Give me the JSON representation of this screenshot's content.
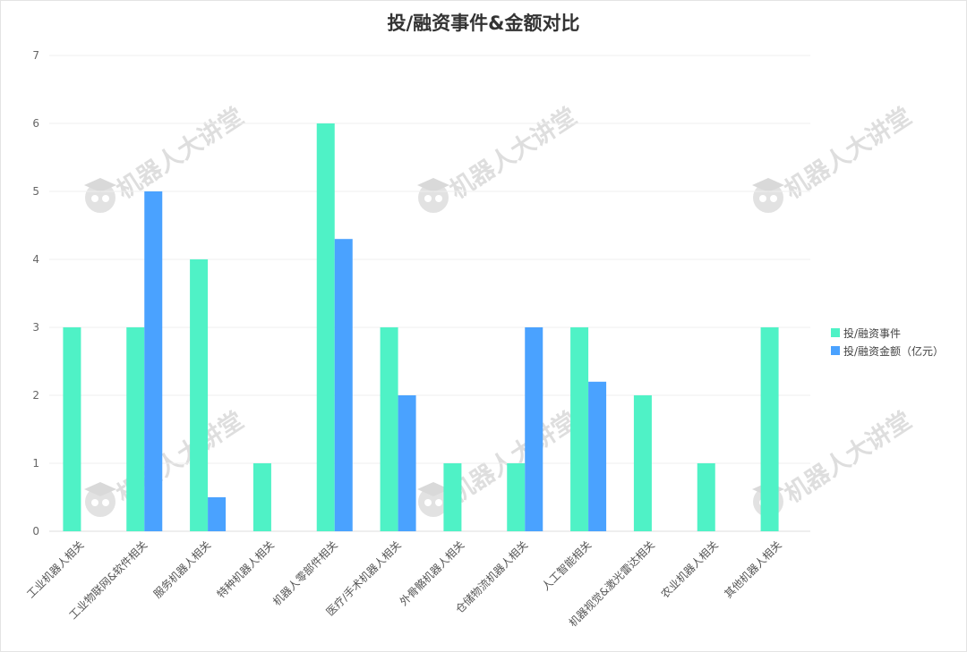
{
  "chart_data": {
    "type": "bar",
    "title": "投/融资事件&金额对比",
    "categories": [
      "工业机器人相关",
      "工业物联网&软件相关",
      "服务机器人相关",
      "特种机器人相关",
      "机器人零部件相关",
      "医疗/手术机器人相关",
      "外骨骼机器人相关",
      "仓储物流机器人相关",
      "人工智能相关",
      "机器视觉&激光雷达相关",
      "农业机器人相关",
      "其他机器人相关"
    ],
    "series": [
      {
        "name": "投/融资事件",
        "color": "#4ff2c6",
        "values": [
          3,
          3,
          4,
          1,
          6,
          3,
          1,
          1,
          3,
          2,
          1,
          3
        ]
      },
      {
        "name": "投/融资金额（亿元）",
        "color": "#4aa2ff",
        "values": [
          null,
          5,
          0.5,
          null,
          4.3,
          2,
          null,
          3,
          2.2,
          null,
          null,
          null
        ]
      }
    ],
    "ylim": [
      0,
      7
    ],
    "yticks": [
      0,
      1,
      2,
      3,
      4,
      5,
      6,
      7
    ],
    "grid": true,
    "legend_position": "right",
    "watermark_text": "机器人大讲堂"
  }
}
